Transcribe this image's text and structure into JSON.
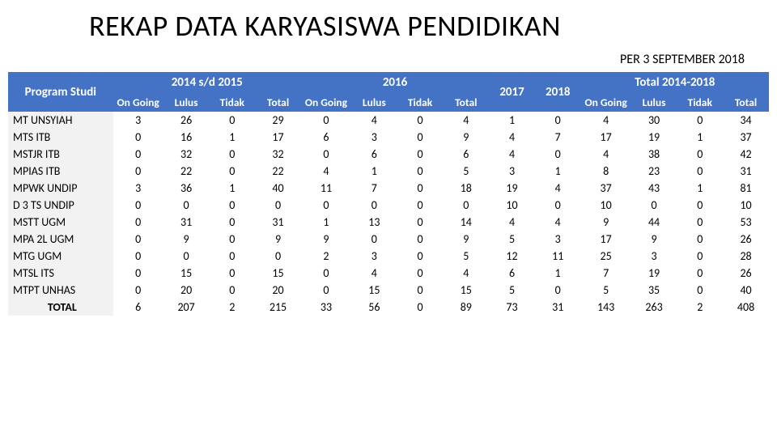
{
  "title": "REKAP DATA KARYASISWA PENDIDIKAN",
  "subtitle": "PER 3 SEPTEMBER 2018",
  "colors": {
    "header_bg": "#4472c4",
    "header_fg": "#ffffff",
    "prog_bg": "#f2f2f2",
    "page_bg": "#ffffff"
  },
  "group_headers": {
    "program": "Program Studi",
    "g2014": "2014 s/d 2015",
    "g2016": "2016",
    "g2017": "2017",
    "g2018": "2018",
    "gTotal": "Total 2014-2018"
  },
  "sub_headers": {
    "on_going": "On Going",
    "lulus": "Lulus",
    "tidak": "Tidak",
    "total": "Total"
  },
  "rows": [
    {
      "prog": "MT UNSYIAH",
      "a": [
        3,
        26,
        0,
        29
      ],
      "b": [
        0,
        4,
        0,
        4
      ],
      "c": 1,
      "d": 0,
      "t": [
        4,
        30,
        0,
        34
      ]
    },
    {
      "prog": "MTS ITB",
      "a": [
        0,
        16,
        1,
        17
      ],
      "b": [
        6,
        3,
        0,
        9
      ],
      "c": 4,
      "d": 7,
      "t": [
        17,
        19,
        1,
        37
      ]
    },
    {
      "prog": "MSTJR ITB",
      "a": [
        0,
        32,
        0,
        32
      ],
      "b": [
        0,
        6,
        0,
        6
      ],
      "c": 4,
      "d": 0,
      "t": [
        4,
        38,
        0,
        42
      ]
    },
    {
      "prog": "MPIAS ITB",
      "a": [
        0,
        22,
        0,
        22
      ],
      "b": [
        4,
        1,
        0,
        5
      ],
      "c": 3,
      "d": 1,
      "t": [
        8,
        23,
        0,
        31
      ]
    },
    {
      "prog": "MPWK UNDIP",
      "a": [
        3,
        36,
        1,
        40
      ],
      "b": [
        11,
        7,
        0,
        18
      ],
      "c": 19,
      "d": 4,
      "t": [
        37,
        43,
        1,
        81
      ]
    },
    {
      "prog": "D 3 TS UNDIP",
      "a": [
        0,
        0,
        0,
        0
      ],
      "b": [
        0,
        0,
        0,
        0
      ],
      "c": 10,
      "d": 0,
      "t": [
        10,
        0,
        0,
        10
      ]
    },
    {
      "prog": "MSTT UGM",
      "a": [
        0,
        31,
        0,
        31
      ],
      "b": [
        1,
        13,
        0,
        14
      ],
      "c": 4,
      "d": 4,
      "t": [
        9,
        44,
        0,
        53
      ]
    },
    {
      "prog": "MPA 2L UGM",
      "a": [
        0,
        9,
        0,
        9
      ],
      "b": [
        9,
        0,
        0,
        9
      ],
      "c": 5,
      "d": 3,
      "t": [
        17,
        9,
        0,
        26
      ]
    },
    {
      "prog": "MTG UGM",
      "a": [
        0,
        0,
        0,
        0
      ],
      "b": [
        2,
        3,
        0,
        5
      ],
      "c": 12,
      "d": 11,
      "t": [
        25,
        3,
        0,
        28
      ]
    },
    {
      "prog": "MTSL ITS",
      "a": [
        0,
        15,
        0,
        15
      ],
      "b": [
        0,
        4,
        0,
        4
      ],
      "c": 6,
      "d": 1,
      "t": [
        7,
        19,
        0,
        26
      ]
    },
    {
      "prog": "MTPT UNHAS",
      "a": [
        0,
        20,
        0,
        20
      ],
      "b": [
        0,
        15,
        0,
        15
      ],
      "c": 5,
      "d": 0,
      "t": [
        5,
        35,
        0,
        40
      ]
    }
  ],
  "total_row": {
    "prog": "TOTAL",
    "a": [
      6,
      207,
      2,
      215
    ],
    "b": [
      33,
      56,
      0,
      89
    ],
    "c": 73,
    "d": 31,
    "t": [
      143,
      263,
      2,
      408
    ]
  },
  "fonts": {
    "title_size": 36,
    "subtitle_size": 16,
    "header_size": 14,
    "cell_size": 14
  }
}
